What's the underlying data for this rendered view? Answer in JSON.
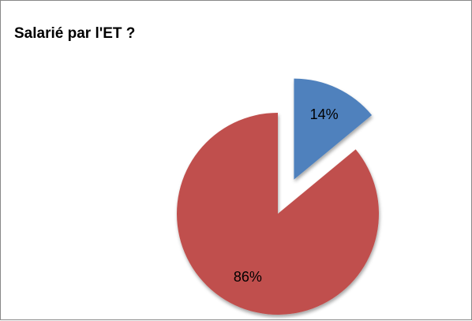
{
  "chart_data": {
    "type": "pie",
    "title": "Salarié par l'ET ?",
    "categories": [
      null,
      null
    ],
    "values": [
      14,
      86
    ],
    "value_labels": [
      "14%",
      "86%"
    ],
    "colors": [
      "#4f81bd",
      "#c0504d"
    ]
  }
}
